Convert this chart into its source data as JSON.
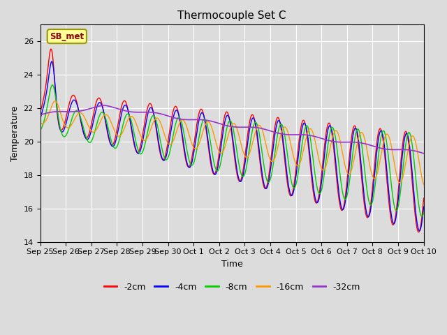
{
  "title": "Thermocouple Set C",
  "xlabel": "Time",
  "ylabel": "Temperature",
  "ylim": [
    14,
    27
  ],
  "yticks": [
    14,
    16,
    18,
    20,
    22,
    24,
    26
  ],
  "bg_color": "#dcdcdc",
  "annotation_text": "SB_met",
  "annotation_fg": "#8B0000",
  "annotation_bg": "#ffff99",
  "annotation_border": "#999900",
  "series": [
    {
      "label": "-2cm",
      "color": "#ff0000"
    },
    {
      "label": "-4cm",
      "color": "#0000ff"
    },
    {
      "label": "-8cm",
      "color": "#00cc00"
    },
    {
      "label": "-16cm",
      "color": "#ff9900"
    },
    {
      "label": "-32cm",
      "color": "#9933cc"
    }
  ],
  "xtick_labels": [
    "Sep 25",
    "Sep 26",
    "Sep 27",
    "Sep 28",
    "Sep 29",
    "Sep 30",
    "Oct 1",
    "Oct 2",
    "Oct 3",
    "Oct 4",
    "Oct 5",
    "Oct 6",
    "Oct 7",
    "Oct 8",
    "Oct 9",
    "Oct 10"
  ]
}
